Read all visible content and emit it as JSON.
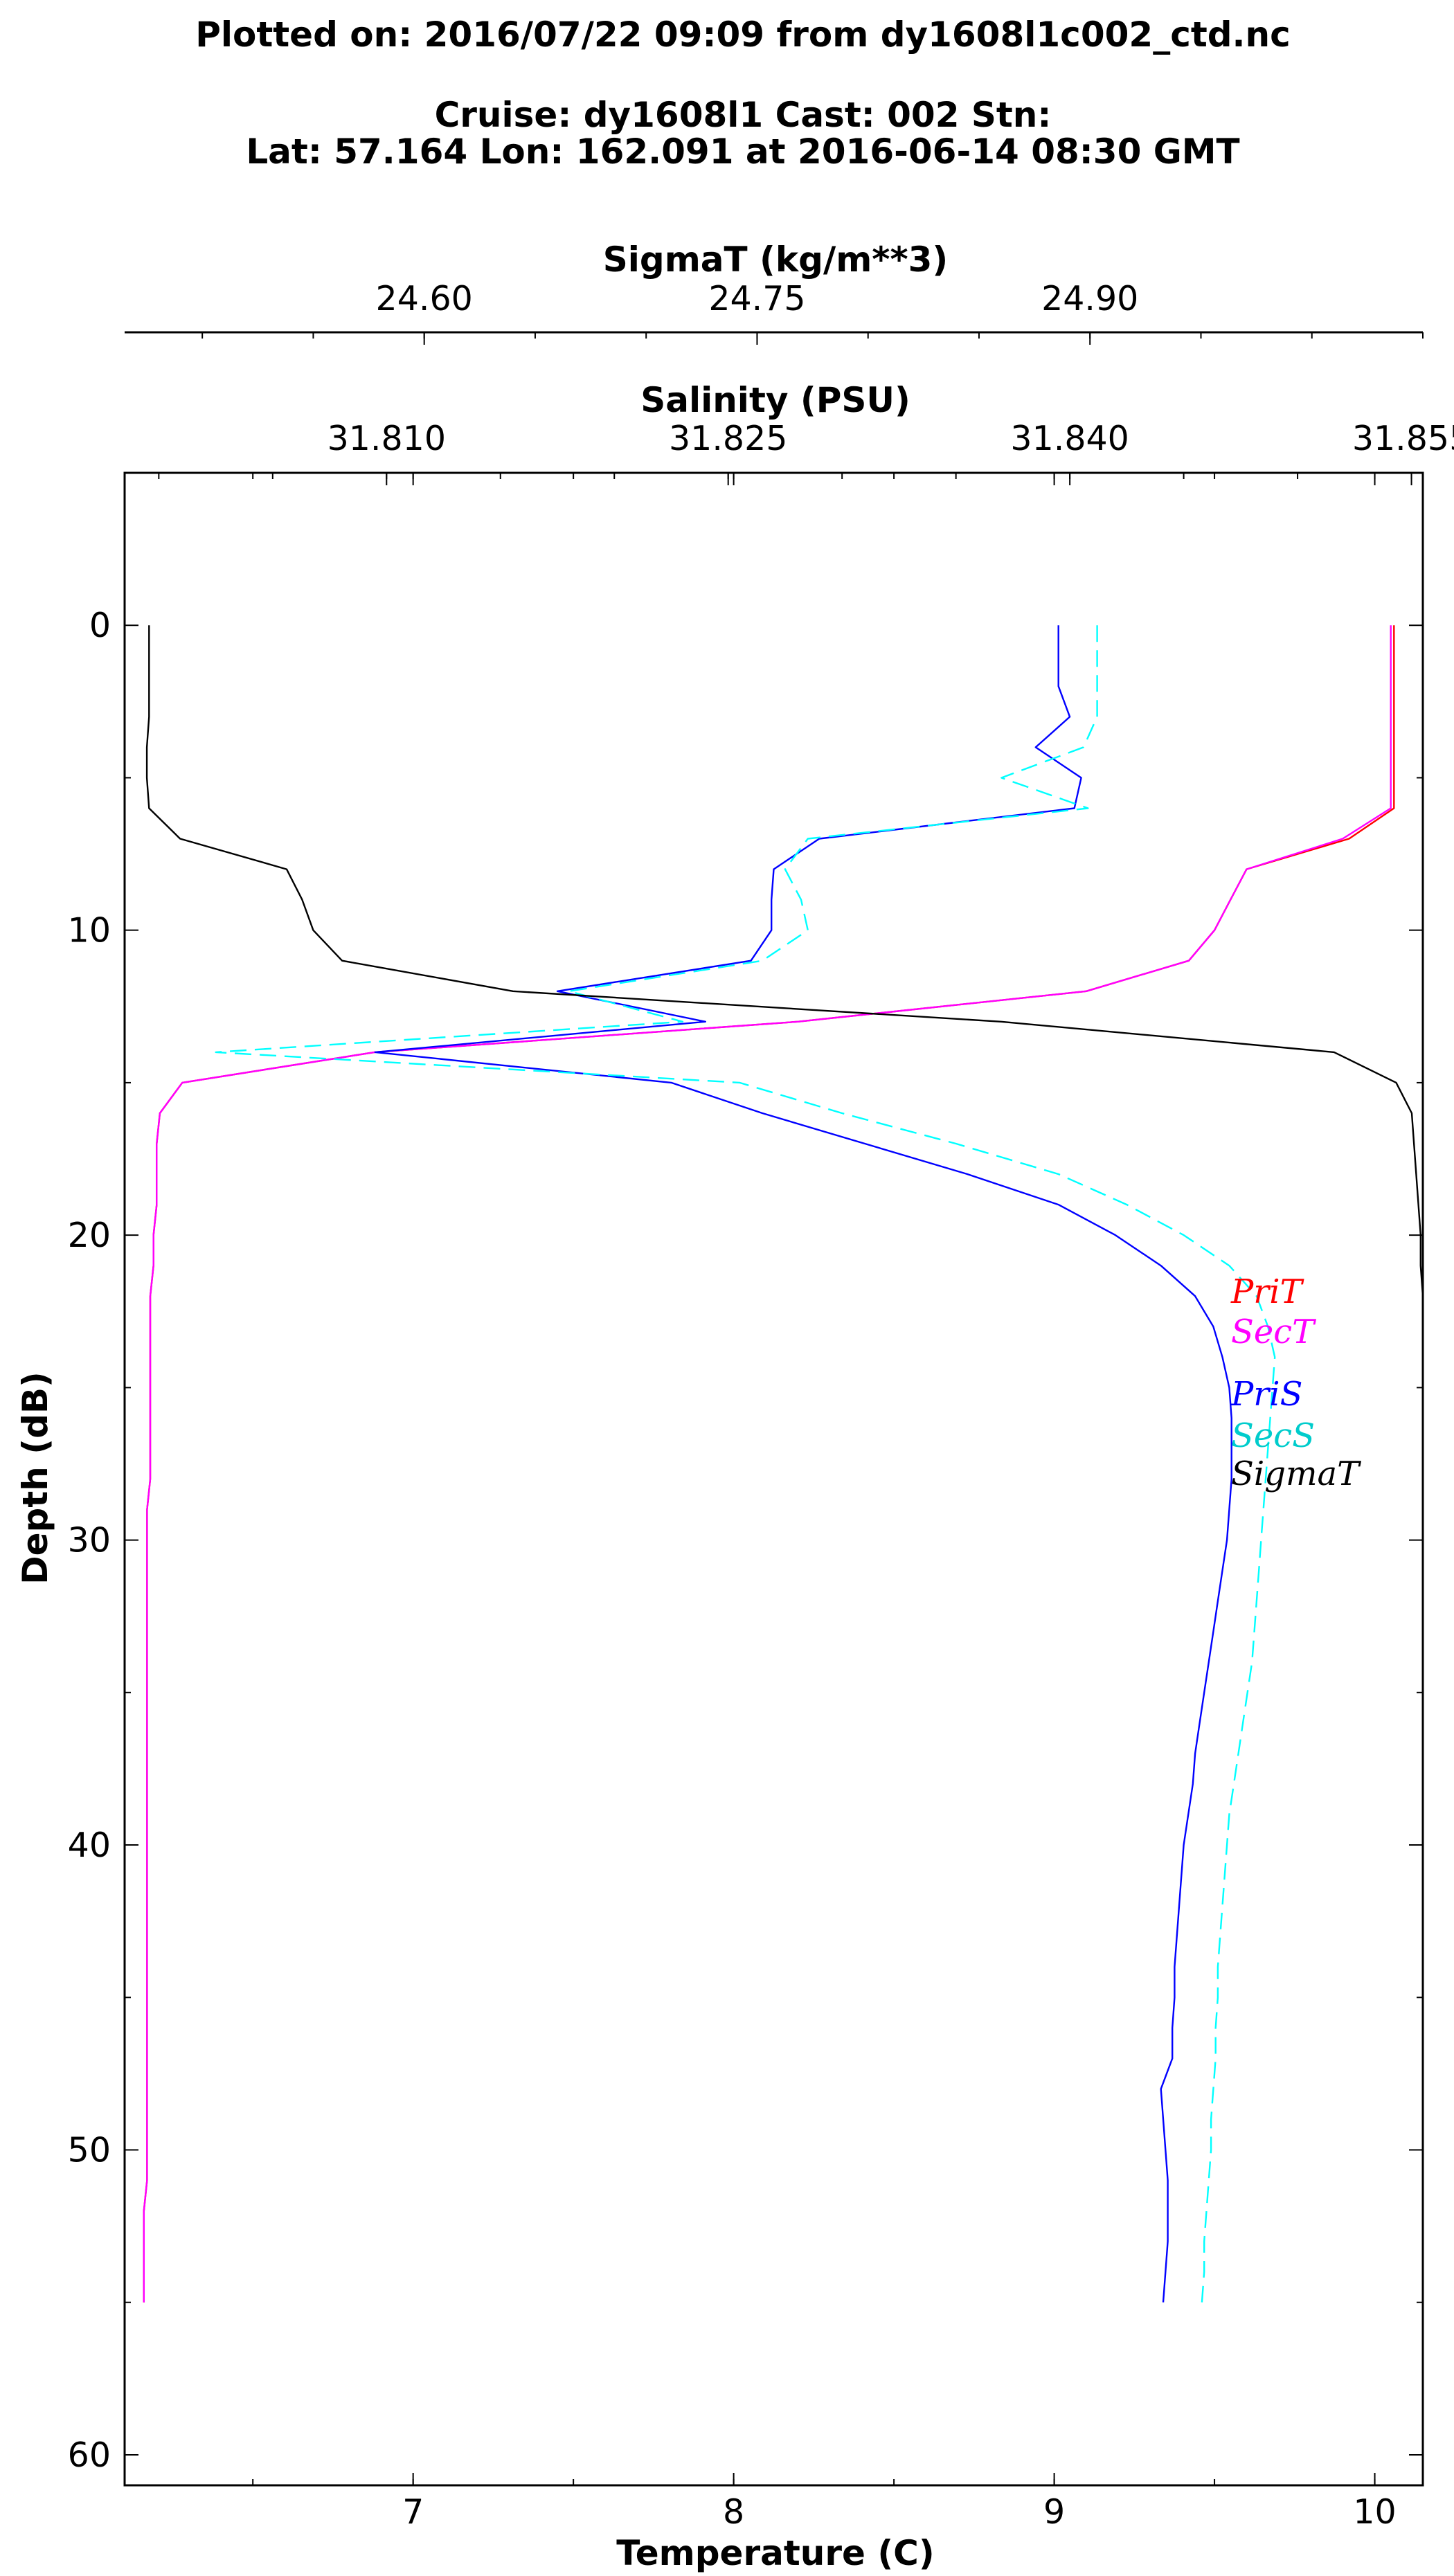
{
  "title_lines": [
    "Plotted on: 2016/07/22 09:09 from dy1608l1c002_ctd.nc",
    "Cruise: dy1608l1 Cast: 002  Stn:",
    "Lat: 57.164  Lon: 162.091 at 2016-06-14 08:30 GMT"
  ],
  "chart_data": {
    "type": "line",
    "ylabel": "Depth (dB)",
    "xlabel": "Temperature (C)",
    "ylim": [
      61,
      -5
    ],
    "yticks": [
      0,
      10,
      20,
      30,
      40,
      50,
      60
    ],
    "axes": {
      "temperature": {
        "label": "Temperature (C)",
        "range": [
          6.1,
          10.15
        ],
        "ticks": [
          "7",
          "8",
          "9",
          "10"
        ],
        "tick_values": [
          7,
          8,
          9,
          10
        ],
        "minor_step": 0.5
      },
      "salinity": {
        "label": "Salinity (PSU)",
        "range": [
          31.7985,
          31.8555
        ],
        "ticks": [
          "31.810",
          "31.825",
          "31.840",
          "31.855"
        ],
        "tick_values": [
          31.81,
          31.825,
          31.84,
          31.855
        ],
        "minor_step": 0.005
      },
      "sigmat": {
        "label": "SigmaT (kg/m**3)",
        "range": [
          24.465,
          25.05
        ],
        "ticks": [
          "24.60",
          "24.75",
          "24.90"
        ],
        "tick_values": [
          24.6,
          24.75,
          24.9
        ],
        "minor_step": 0.05
      }
    },
    "depth": [
      0,
      1,
      2,
      3,
      4,
      5,
      6,
      7,
      8,
      9,
      10,
      11,
      12,
      13,
      14,
      15,
      16,
      17,
      18,
      19,
      20,
      21,
      22,
      23,
      24,
      25,
      26,
      27,
      28,
      29,
      30,
      31,
      32,
      33,
      34,
      35,
      36,
      37,
      38,
      39,
      40,
      41,
      42,
      43,
      44,
      45,
      46,
      47,
      48,
      49,
      50,
      51,
      52,
      53,
      54,
      55
    ],
    "series": [
      {
        "name": "PriT",
        "axis": "temperature",
        "color": "#ff0000",
        "dash": false,
        "values": [
          10.06,
          10.06,
          10.06,
          10.06,
          10.06,
          10.06,
          10.06,
          9.92,
          9.6,
          9.55,
          9.5,
          9.42,
          9.1,
          8.2,
          6.88,
          6.28,
          6.21,
          6.2,
          6.2,
          6.2,
          6.19,
          6.19,
          6.18,
          6.18,
          6.18,
          6.18,
          6.18,
          6.18,
          6.18,
          6.17,
          6.17,
          6.17,
          6.17,
          6.17,
          6.17,
          6.17,
          6.17,
          6.17,
          6.17,
          6.17,
          6.17,
          6.17,
          6.17,
          6.17,
          6.17,
          6.17,
          6.17,
          6.17,
          6.17,
          6.17,
          6.17,
          6.17,
          6.16,
          6.16,
          6.16,
          6.16
        ]
      },
      {
        "name": "SecT",
        "axis": "temperature",
        "color": "#ff00ff",
        "dash": false,
        "values": [
          10.05,
          10.05,
          10.05,
          10.05,
          10.05,
          10.05,
          10.05,
          9.9,
          9.6,
          9.55,
          9.5,
          9.42,
          9.1,
          8.2,
          6.88,
          6.28,
          6.21,
          6.2,
          6.2,
          6.2,
          6.19,
          6.19,
          6.18,
          6.18,
          6.18,
          6.18,
          6.18,
          6.18,
          6.18,
          6.17,
          6.17,
          6.17,
          6.17,
          6.17,
          6.17,
          6.17,
          6.17,
          6.17,
          6.17,
          6.17,
          6.17,
          6.17,
          6.17,
          6.17,
          6.17,
          6.17,
          6.17,
          6.17,
          6.17,
          6.17,
          6.17,
          6.17,
          6.16,
          6.16,
          6.16,
          6.16
        ]
      },
      {
        "name": "PriS",
        "axis": "salinity",
        "color": "#0000ff",
        "dash": false,
        "values": [
          31.8395,
          31.8395,
          31.8395,
          31.84,
          31.8385,
          31.8405,
          31.8402,
          31.829,
          31.827,
          31.8269,
          31.8269,
          31.826,
          31.8175,
          31.824,
          31.8095,
          31.8225,
          31.8265,
          31.831,
          31.8355,
          31.8395,
          31.842,
          31.844,
          31.8455,
          31.8463,
          31.8467,
          31.847,
          31.8471,
          31.8471,
          31.8471,
          31.847,
          31.8469,
          31.8467,
          31.8465,
          31.8463,
          31.8461,
          31.8459,
          31.8457,
          31.8455,
          31.8454,
          31.8452,
          31.845,
          31.8449,
          31.8448,
          31.8447,
          31.8446,
          31.8446,
          31.8445,
          31.8445,
          31.844,
          31.8441,
          31.8442,
          31.8443,
          31.8443,
          31.8443,
          31.8442,
          31.8441
        ]
      },
      {
        "name": "SecS",
        "axis": "salinity",
        "color": "#00ffff",
        "dash": true,
        "values": [
          31.8412,
          31.8412,
          31.8412,
          31.8412,
          31.8406,
          31.837,
          31.8408,
          31.8285,
          31.8275,
          31.8282,
          31.8285,
          31.8265,
          31.818,
          31.823,
          31.8025,
          31.8255,
          31.83,
          31.835,
          31.8395,
          31.8425,
          31.845,
          31.847,
          31.8482,
          31.8487,
          31.849,
          31.8489,
          31.8488,
          31.8487,
          31.8486,
          31.8485,
          31.8484,
          31.8483,
          31.8482,
          31.8481,
          31.848,
          31.8478,
          31.8476,
          31.8474,
          31.8472,
          31.847,
          31.8469,
          31.8468,
          31.8467,
          31.8466,
          31.8465,
          31.8465,
          31.8464,
          31.8464,
          31.8463,
          31.8462,
          31.8462,
          31.8461,
          31.846,
          31.8459,
          31.8459,
          31.8458
        ]
      },
      {
        "name": "SigmaT",
        "axis": "sigmat",
        "color": "#000000",
        "dash": false,
        "values": [
          24.476,
          24.476,
          24.476,
          24.476,
          24.475,
          24.475,
          24.476,
          24.49,
          24.538,
          24.545,
          24.55,
          24.563,
          24.64,
          24.86,
          25.01,
          25.038,
          25.045,
          25.046,
          25.047,
          25.048,
          25.049,
          25.049,
          25.05,
          25.05,
          25.05,
          25.05,
          25.05,
          25.05,
          25.05,
          25.05,
          25.05,
          25.05,
          25.05,
          25.05,
          25.05,
          25.05,
          25.05,
          25.05,
          25.05,
          25.05,
          25.05,
          25.05,
          25.05,
          25.05,
          25.05,
          25.05,
          25.05,
          25.05,
          25.05,
          25.05,
          25.05,
          25.05,
          25.05,
          25.05,
          25.05,
          25.05
        ]
      }
    ]
  }
}
